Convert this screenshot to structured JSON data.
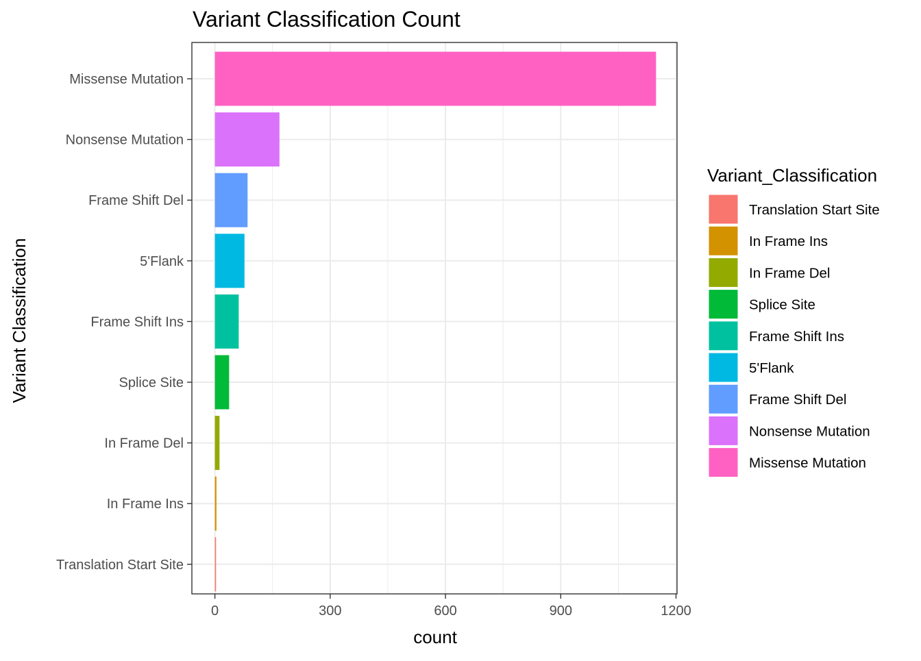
{
  "chart_data": {
    "type": "bar",
    "orientation": "horizontal",
    "title": "Variant Classification Count",
    "xlabel": "count",
    "ylabel": "Variant Classification",
    "xlim": [
      0,
      1200
    ],
    "xticks": [
      0,
      300,
      600,
      900,
      1200
    ],
    "grid": true,
    "categories": [
      "Translation Start Site",
      "In Frame Ins",
      "In Frame Del",
      "Splice Site",
      "Frame Shift Ins",
      "5'Flank",
      "Frame Shift Del",
      "Nonsense Mutation",
      "Missense Mutation"
    ],
    "values": [
      3,
      4,
      12,
      37,
      62,
      77,
      85,
      168,
      1148
    ],
    "colors": [
      "#F8766D",
      "#D39200",
      "#93AA00",
      "#00BA38",
      "#00C19F",
      "#00B9E3",
      "#619CFF",
      "#DB72FB",
      "#FF61C3"
    ],
    "legend": {
      "title": "Variant_Classification",
      "position": "right",
      "entries": [
        "Translation Start Site",
        "In Frame Ins",
        "In Frame Del",
        "Splice Site",
        "Frame Shift Ins",
        "5'Flank",
        "Frame Shift Del",
        "Nonsense Mutation",
        "Missense Mutation"
      ]
    }
  }
}
